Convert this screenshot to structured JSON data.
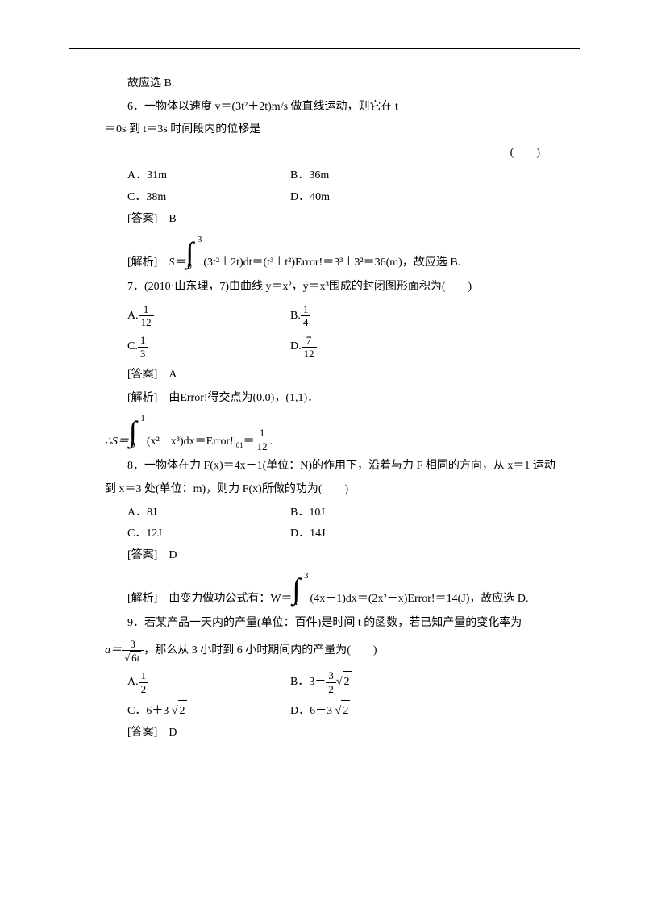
{
  "p0": "故应选 B.",
  "q6": {
    "stem1": "6．一物体以速度 v＝(3t²＋2t)m/s 做直线运动，则它在 t",
    "stem2": "＝0s 到 t＝3s 时间段内的位移是",
    "paren": "(　　)",
    "A": "A．31m",
    "B": "B．36m",
    "C": "C．38m",
    "D": "D．40m",
    "answer": "[答案]　B",
    "analysis_label": "[解析]　",
    "analysis_pre": "S＝",
    "int_ub": "3",
    "int_lb": "0",
    "analysis_post": "(3t²＋2t)dt＝(t³＋t²)Error!＝3³＋3²＝36(m)，故应选 B."
  },
  "q7": {
    "stem": "7．(2010·山东理，7)由曲线 y＝x²，y＝x³围成的封闭图形面积为(　　)",
    "A_pre": "A.",
    "A_num": "1",
    "A_den": "12",
    "B_pre": "B.",
    "B_num": "1",
    "B_den": "4",
    "C_pre": "C.",
    "C_num": "1",
    "C_den": "3",
    "D_pre": "D.",
    "D_num": "7",
    "D_den": "12",
    "answer": "[答案]　A",
    "analysis1": "[解析]　由Error!得交点为(0,0)，(1,1)．",
    "analysis2_pre": "∴S＝",
    "int_ub": "1",
    "int_lb": "0",
    "analysis2_mid": "(x²－x³)dx＝Error!|",
    "analysis2_eq": "＝",
    "res_num": "1",
    "res_den": "12",
    "res_post": "."
  },
  "q8": {
    "stem1": "8．一物体在力 F(x)＝4x－1(单位：N)的作用下，沿着与力 F 相同的方向，从 x＝1 运动",
    "stem2": "到 x＝3 处(单位：m)，则力 F(x)所做的功为(　　)",
    "A": "A．8J",
    "B": "B．10J",
    "C": "C．12J",
    "D": "D．14J",
    "answer": "[答案]　D",
    "analysis_label": "[解析]　由变力做功公式有：W＝",
    "int_ub": "3",
    "int_lb": "1",
    "analysis_post": "(4x－1)dx＝(2x²－x)Error!＝14(J)，故应选 D."
  },
  "q9": {
    "stem1": "9．若某产品一天内的产量(单位：百件)是时间 t 的函数，若已知产量的变化率为",
    "a_pre": "a＝",
    "a_num": "3",
    "a_sqrt": "6t",
    "stem2": "，那么从 3 小时到 6 小时期间内的产量为(　　)",
    "A_pre": "A.",
    "A_num": "1",
    "A_den": "2",
    "B_pre": "B．3－",
    "B_num": "3",
    "B_den": "2",
    "B_sqrt": "2",
    "C_pre": "C．6＋3",
    "C_sqrt": "2",
    "D_pre": "D．6－3",
    "D_sqrt": "2",
    "answer": "[答案]　D"
  }
}
